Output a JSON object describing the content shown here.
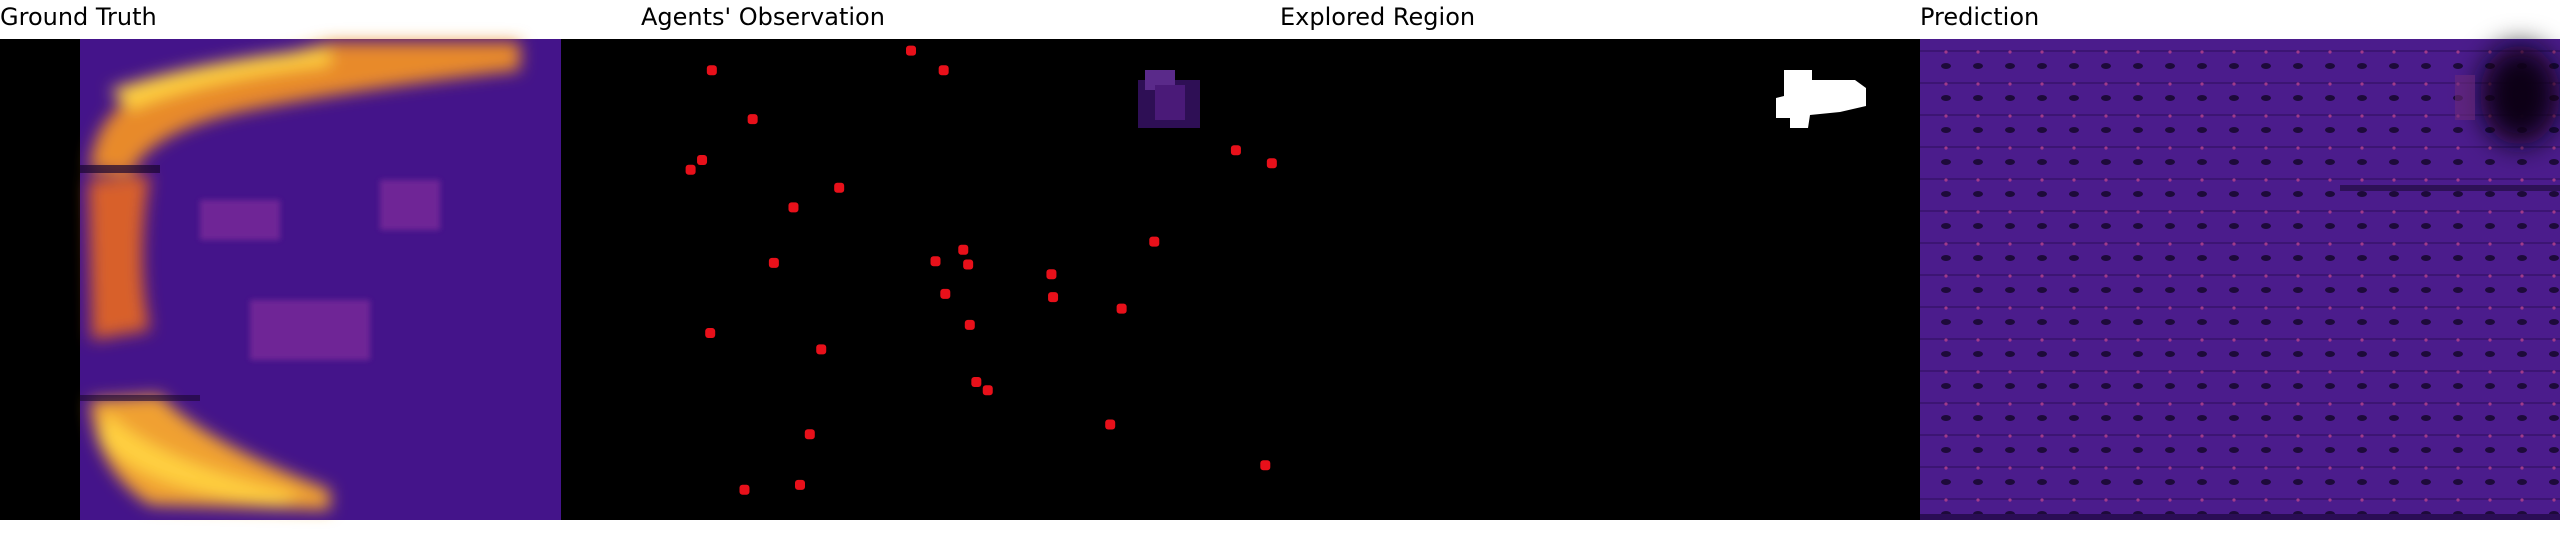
{
  "panels": [
    {
      "title": "Ground Truth"
    },
    {
      "title": "Agents' Observation"
    },
    {
      "title": "Explored Region"
    },
    {
      "title": "Prediction"
    }
  ]
}
